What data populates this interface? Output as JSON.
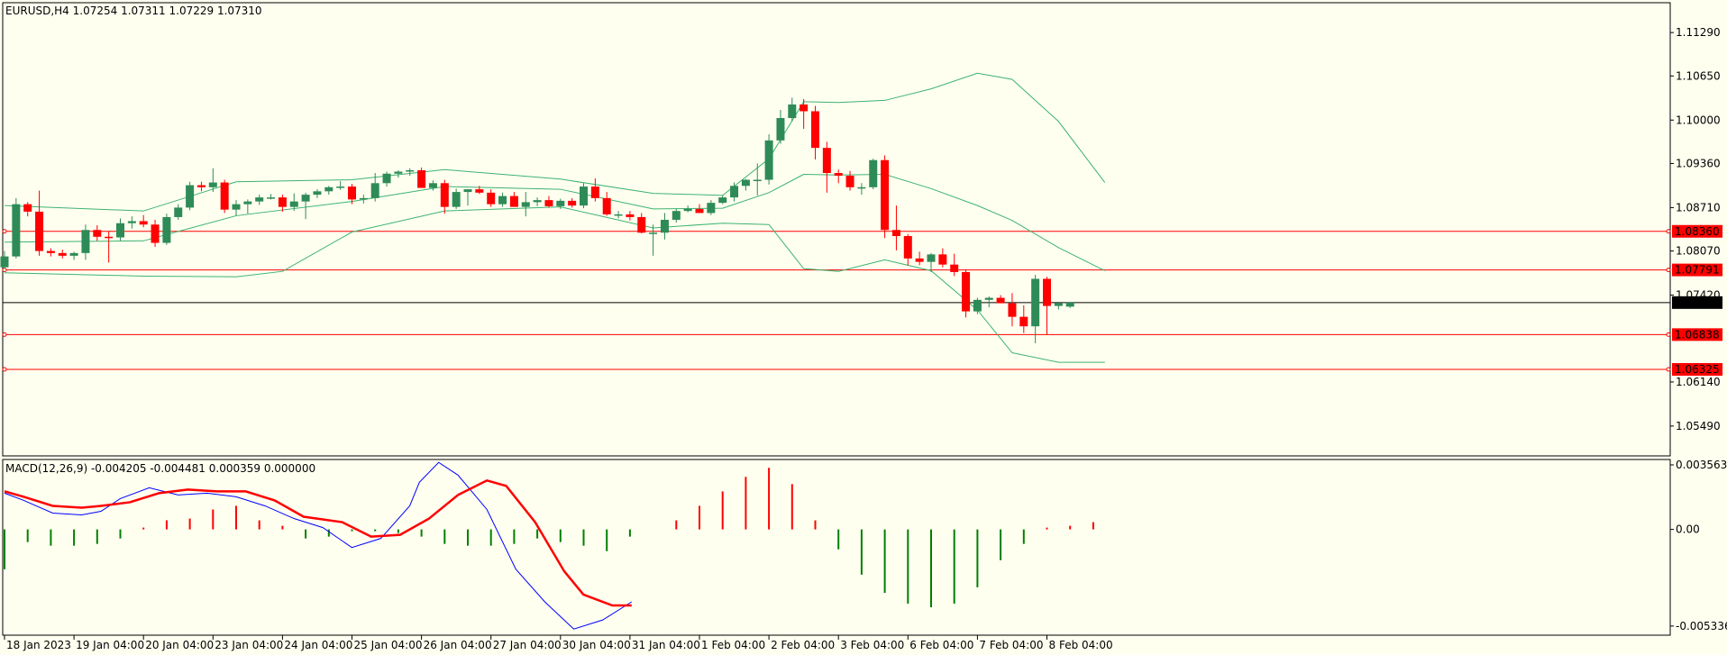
{
  "chart_data": [
    {
      "type": "candlestick",
      "title": "EURUSD,H4  1.07254 1.07311 1.07229 1.07310",
      "y_ticks": [
        1.1129,
        1.1065,
        1.1,
        1.0936,
        1.0871,
        1.0807,
        1.0742,
        1.0614,
        1.0549
      ],
      "y_tick_labels": [
        "1.11290",
        "1.10650",
        "1.10000",
        "1.09360",
        "1.08710",
        "1.08070",
        "1.07420",
        "1.06140",
        "1.05490"
      ],
      "ylim": [
        1.0505,
        1.1173
      ],
      "x_labels": [
        "18 Jan 2023",
        "19 Jan 04:00",
        "20 Jan 04:00",
        "23 Jan 04:00",
        "24 Jan 04:00",
        "25 Jan 04:00",
        "26 Jan 04:00",
        "27 Jan 04:00",
        "30 Jan 04:00",
        "31 Jan 04:00",
        "1 Feb 04:00",
        "2 Feb 04:00",
        "3 Feb 04:00",
        "6 Feb 04:00",
        "7 Feb 04:00",
        "8 Feb 04:00"
      ],
      "x_label_candle_index": [
        0,
        6,
        12,
        18,
        24,
        30,
        36,
        42,
        48,
        54,
        60,
        66,
        72,
        78,
        84,
        90
      ],
      "candles": [
        [
          1.0783,
          1.0807,
          1.0781,
          1.0799
        ],
        [
          1.0799,
          1.0885,
          1.0796,
          1.0876
        ],
        [
          1.0876,
          1.0879,
          1.0858,
          1.0865
        ],
        [
          1.0865,
          1.0896,
          1.08,
          1.0807
        ],
        [
          1.0807,
          1.0811,
          1.0799,
          1.0804
        ],
        [
          1.0804,
          1.0809,
          1.0796,
          1.08
        ],
        [
          1.08,
          1.0806,
          1.0794,
          1.0804
        ],
        [
          1.0804,
          1.0846,
          1.0794,
          1.0838
        ],
        [
          1.0838,
          1.0845,
          1.0822,
          1.0828
        ],
        [
          1.0828,
          1.0836,
          1.079,
          1.0827
        ],
        [
          1.0827,
          1.0855,
          1.0822,
          1.0848
        ],
        [
          1.0848,
          1.0858,
          1.084,
          1.0851
        ],
        [
          1.0851,
          1.086,
          1.0842,
          1.0846
        ],
        [
          1.0846,
          1.0853,
          1.0813,
          1.0819
        ],
        [
          1.0819,
          1.0862,
          1.0816,
          1.0857
        ],
        [
          1.0857,
          1.0876,
          1.0853,
          1.0871
        ],
        [
          1.0871,
          1.0909,
          1.0867,
          1.0904
        ],
        [
          1.0904,
          1.0909,
          1.0895,
          1.0901
        ],
        [
          1.0901,
          1.0929,
          1.0894,
          1.0908
        ],
        [
          1.0908,
          1.0912,
          1.0863,
          1.0868
        ],
        [
          1.0868,
          1.0882,
          1.0859,
          1.0876
        ],
        [
          1.0876,
          1.0883,
          1.0862,
          1.088
        ],
        [
          1.088,
          1.089,
          1.0875,
          1.0886
        ],
        [
          1.0886,
          1.0891,
          1.0883,
          1.0886
        ],
        [
          1.0886,
          1.089,
          1.0865,
          1.0872
        ],
        [
          1.0872,
          1.0892,
          1.0866,
          1.088
        ],
        [
          1.088,
          1.0893,
          1.0854,
          1.089
        ],
        [
          1.089,
          1.0898,
          1.0885,
          1.0895
        ],
        [
          1.0895,
          1.0903,
          1.089,
          1.0901
        ],
        [
          1.0901,
          1.091,
          1.0897,
          1.0902
        ],
        [
          1.0902,
          1.0906,
          1.0876,
          1.0883
        ],
        [
          1.0883,
          1.089,
          1.0877,
          1.0885
        ],
        [
          1.0885,
          1.0922,
          1.088,
          1.0907
        ],
        [
          1.0907,
          1.0924,
          1.0902,
          1.0921
        ],
        [
          1.0921,
          1.0926,
          1.0915,
          1.0924
        ],
        [
          1.0924,
          1.0929,
          1.0918,
          1.0926
        ],
        [
          1.0926,
          1.093,
          1.09,
          1.09
        ],
        [
          1.09,
          1.0911,
          1.0896,
          1.0907
        ],
        [
          1.0907,
          1.0912,
          1.0862,
          1.0872
        ],
        [
          1.0872,
          1.0899,
          1.0869,
          1.0894
        ],
        [
          1.0894,
          1.0898,
          1.0874,
          1.0898
        ],
        [
          1.0898,
          1.0903,
          1.0891,
          1.0893
        ],
        [
          1.0893,
          1.0898,
          1.0872,
          1.0876
        ],
        [
          1.0876,
          1.0893,
          1.0872,
          1.0888
        ],
        [
          1.0888,
          1.0894,
          1.0875,
          1.0872
        ],
        [
          1.0872,
          1.0894,
          1.0858,
          1.0879
        ],
        [
          1.0879,
          1.0886,
          1.0873,
          1.0882
        ],
        [
          1.0882,
          1.0888,
          1.0871,
          1.0873
        ],
        [
          1.0873,
          1.0884,
          1.0869,
          1.0881
        ],
        [
          1.0881,
          1.0885,
          1.0871,
          1.0874
        ],
        [
          1.0874,
          1.0907,
          1.087,
          1.0902
        ],
        [
          1.0902,
          1.0914,
          1.088,
          1.0885
        ],
        [
          1.0885,
          1.0894,
          1.0859,
          1.0861
        ],
        [
          1.0861,
          1.0866,
          1.0855,
          1.0861
        ],
        [
          1.0861,
          1.0866,
          1.0852,
          1.0857
        ],
        [
          1.0857,
          1.0863,
          1.0833,
          1.0834
        ],
        [
          1.0834,
          1.0846,
          1.08,
          1.0834
        ],
        [
          1.0834,
          1.0863,
          1.0824,
          1.0853
        ],
        [
          1.0853,
          1.0869,
          1.0849,
          1.0866
        ],
        [
          1.0866,
          1.0874,
          1.0864,
          1.0869
        ],
        [
          1.0869,
          1.0876,
          1.0866,
          1.0863
        ],
        [
          1.0863,
          1.0882,
          1.086,
          1.0878
        ],
        [
          1.0878,
          1.0889,
          1.0876,
          1.0886
        ],
        [
          1.0886,
          1.0908,
          1.088,
          1.0903
        ],
        [
          1.0903,
          1.0913,
          1.0896,
          1.0912
        ],
        [
          1.0912,
          1.0936,
          1.0889,
          1.0912
        ],
        [
          1.0912,
          1.0979,
          1.0905,
          1.097
        ],
        [
          1.097,
          1.1015,
          1.0965,
          1.1003
        ],
        [
          1.1003,
          1.1033,
          1.0998,
          1.1023
        ],
        [
          1.1023,
          1.1031,
          1.0987,
          1.1013
        ],
        [
          1.1013,
          1.1021,
          1.0942,
          1.0959
        ],
        [
          1.0959,
          1.0968,
          1.0893,
          1.0922
        ],
        [
          1.0922,
          1.0927,
          1.0907,
          1.0918
        ],
        [
          1.0918,
          1.0925,
          1.0896,
          1.0901
        ],
        [
          1.0901,
          1.0907,
          1.089,
          1.0901
        ],
        [
          1.0901,
          1.0943,
          1.0898,
          1.0941
        ],
        [
          1.0941,
          1.0948,
          1.0826,
          1.0838
        ],
        [
          1.0838,
          1.0874,
          1.0808,
          1.0829
        ],
        [
          1.0829,
          1.0832,
          1.0786,
          1.0796
        ],
        [
          1.0796,
          1.0806,
          1.0786,
          1.0791
        ],
        [
          1.0791,
          1.0804,
          1.0776,
          1.0802
        ],
        [
          1.0802,
          1.0811,
          1.0783,
          1.0787
        ],
        [
          1.0787,
          1.0803,
          1.077,
          1.0776
        ],
        [
          1.0776,
          1.078,
          1.0709,
          1.0718
        ],
        [
          1.0718,
          1.0738,
          1.0714,
          1.0735
        ],
        [
          1.0735,
          1.074,
          1.0724,
          1.0738
        ],
        [
          1.0738,
          1.0742,
          1.073,
          1.073
        ],
        [
          1.073,
          1.0745,
          1.0696,
          1.071
        ],
        [
          1.071,
          1.0727,
          1.0686,
          1.0696
        ],
        [
          1.0696,
          1.0772,
          1.0671,
          1.0766
        ],
        [
          1.0766,
          1.0769,
          1.0683,
          1.0726
        ],
        [
          1.0726,
          1.0732,
          1.0721,
          1.073
        ],
        [
          1.0725,
          1.0731,
          1.0723,
          1.0731
        ]
      ],
      "bollinger": {
        "upper": [
          [
            0,
            1.0874
          ],
          [
            12,
            1.0866
          ],
          [
            20,
            1.0909
          ],
          [
            30,
            1.0912
          ],
          [
            38,
            1.0927
          ],
          [
            48,
            1.0913
          ],
          [
            56,
            1.0892
          ],
          [
            62,
            1.0889
          ],
          [
            66,
            1.0943
          ],
          [
            69,
            1.1027
          ],
          [
            72,
            1.1026
          ],
          [
            76,
            1.1029
          ],
          [
            80,
            1.1046
          ],
          [
            84,
            1.1069
          ],
          [
            87,
            1.106
          ],
          [
            91,
            1.0998
          ],
          [
            95,
            1.0908
          ]
        ],
        "middle": [
          [
            0,
            1.082
          ],
          [
            12,
            1.0822
          ],
          [
            20,
            1.0859
          ],
          [
            30,
            1.088
          ],
          [
            38,
            1.0902
          ],
          [
            48,
            1.0898
          ],
          [
            56,
            1.0869
          ],
          [
            62,
            1.087
          ],
          [
            66,
            1.0893
          ],
          [
            69,
            1.092
          ],
          [
            72,
            1.0919
          ],
          [
            76,
            1.092
          ],
          [
            80,
            1.0899
          ],
          [
            84,
            1.0874
          ],
          [
            87,
            1.0852
          ],
          [
            91,
            1.0812
          ],
          [
            95,
            1.0778
          ]
        ],
        "lower": [
          [
            0,
            1.0775
          ],
          [
            12,
            1.077
          ],
          [
            20,
            1.0769
          ],
          [
            24,
            1.0777
          ],
          [
            30,
            1.0835
          ],
          [
            38,
            1.0866
          ],
          [
            48,
            1.0872
          ],
          [
            56,
            1.0841
          ],
          [
            62,
            1.0848
          ],
          [
            66,
            1.0846
          ],
          [
            69,
            1.0781
          ],
          [
            72,
            1.0777
          ],
          [
            76,
            1.0794
          ],
          [
            80,
            1.0778
          ],
          [
            84,
            1.072
          ],
          [
            87,
            1.0657
          ],
          [
            91,
            1.0643
          ],
          [
            95,
            1.0643
          ]
        ]
      },
      "horizontal_levels": [
        {
          "value": 1.0836,
          "label": "1.08360",
          "color": "#ff0000"
        },
        {
          "value": 1.07791,
          "label": "1.07791",
          "color": "#ff0000"
        },
        {
          "value": 1.0731,
          "label": "1.07310",
          "color": "#000000"
        },
        {
          "value": 1.06838,
          "label": "1.06838",
          "color": "#ff0000"
        },
        {
          "value": 1.06325,
          "label": "1.06325",
          "color": "#ff0000"
        }
      ],
      "colors": {
        "bull": "#2e8b57",
        "bear": "#ff0000",
        "bands": "#3cb371",
        "background": "#fffff0"
      }
    },
    {
      "type": "bar",
      "title": "MACD(12,26,9) -0.004205 -0.004481 0.000359 0.000000",
      "y_ticks": [
        0.003563,
        0.0,
        -0.005336
      ],
      "y_tick_labels": [
        "0.003563",
        "0.00",
        "-0.005336"
      ],
      "ylim": [
        -0.00584,
        0.00386
      ],
      "histogram_sample_index": [
        0,
        2,
        4,
        6,
        8,
        10,
        12,
        14,
        16,
        18,
        20,
        22,
        24,
        26,
        28,
        30,
        32,
        34,
        36,
        38,
        40,
        42,
        44,
        46,
        48,
        50,
        52,
        54,
        56,
        58,
        60,
        62,
        64,
        66,
        68,
        70,
        72,
        74,
        76,
        78,
        80,
        82,
        84,
        86,
        88,
        90,
        92,
        94
      ],
      "histogram": [
        -0.0022,
        -0.0007,
        -0.0009,
        -0.0009,
        -0.0008,
        -0.0005,
        0.0001,
        0.0005,
        0.0006,
        0.0011,
        0.0013,
        0.0005,
        0.0002,
        -0.0005,
        -0.0004,
        -0.0001,
        -0.0001,
        -0.0002,
        -0.0004,
        -0.0008,
        -0.0009,
        -0.0009,
        -0.0008,
        -0.0005,
        -0.0007,
        -0.0009,
        -0.0012,
        -0.0004,
        0.0,
        0.0005,
        0.0013,
        0.0021,
        0.0029,
        0.0034,
        0.0025,
        0.0005,
        -0.0011,
        -0.0025,
        -0.0035,
        -0.0041,
        -0.0043,
        -0.0041,
        -0.0032,
        -0.0017,
        -0.0008,
        0.0001,
        0.0002,
        0.0004
      ],
      "macd_line": [
        [
          0,
          0.002
        ],
        [
          4,
          0.0016
        ],
        [
          10,
          0.0009
        ],
        [
          16,
          0.0008
        ],
        [
          20,
          0.001
        ],
        [
          24,
          0.0017
        ],
        [
          30,
          0.0023
        ],
        [
          36,
          0.0019
        ],
        [
          42,
          0.002
        ],
        [
          48,
          0.0018
        ],
        [
          54,
          0.0013
        ],
        [
          60,
          0.0006
        ],
        [
          66,
          0.0001
        ],
        [
          72,
          -0.001
        ],
        [
          78,
          -0.0005
        ],
        [
          84,
          0.0013
        ],
        [
          86,
          0.0026
        ],
        [
          90,
          0.0037
        ],
        [
          94,
          0.003
        ],
        [
          100,
          0.0011
        ],
        [
          106,
          -0.0022
        ],
        [
          112,
          -0.004
        ],
        [
          118,
          -0.0055
        ],
        [
          124,
          -0.005
        ],
        [
          130,
          -0.004
        ]
      ],
      "signal_line": [
        [
          0,
          0.0021
        ],
        [
          4,
          0.0018
        ],
        [
          10,
          0.0013
        ],
        [
          16,
          0.0012
        ],
        [
          20,
          0.0013
        ],
        [
          26,
          0.0015
        ],
        [
          32,
          0.002
        ],
        [
          38,
          0.0022
        ],
        [
          44,
          0.0021
        ],
        [
          50,
          0.0021
        ],
        [
          56,
          0.0016
        ],
        [
          62,
          0.0007
        ],
        [
          70,
          0.0004
        ],
        [
          76,
          -0.0004
        ],
        [
          82,
          -0.0003
        ],
        [
          88,
          0.0006
        ],
        [
          94,
          0.0019
        ],
        [
          100,
          0.0027
        ],
        [
          104,
          0.0024
        ],
        [
          110,
          0.0004
        ],
        [
          116,
          -0.0023
        ],
        [
          120,
          -0.0036
        ],
        [
          126,
          -0.0042
        ],
        [
          130,
          -0.0042
        ]
      ],
      "colors": {
        "histogram_up": "#ff0000",
        "histogram_down": "#008000",
        "macd": "#0000ff",
        "signal": "#ff0000"
      }
    }
  ]
}
